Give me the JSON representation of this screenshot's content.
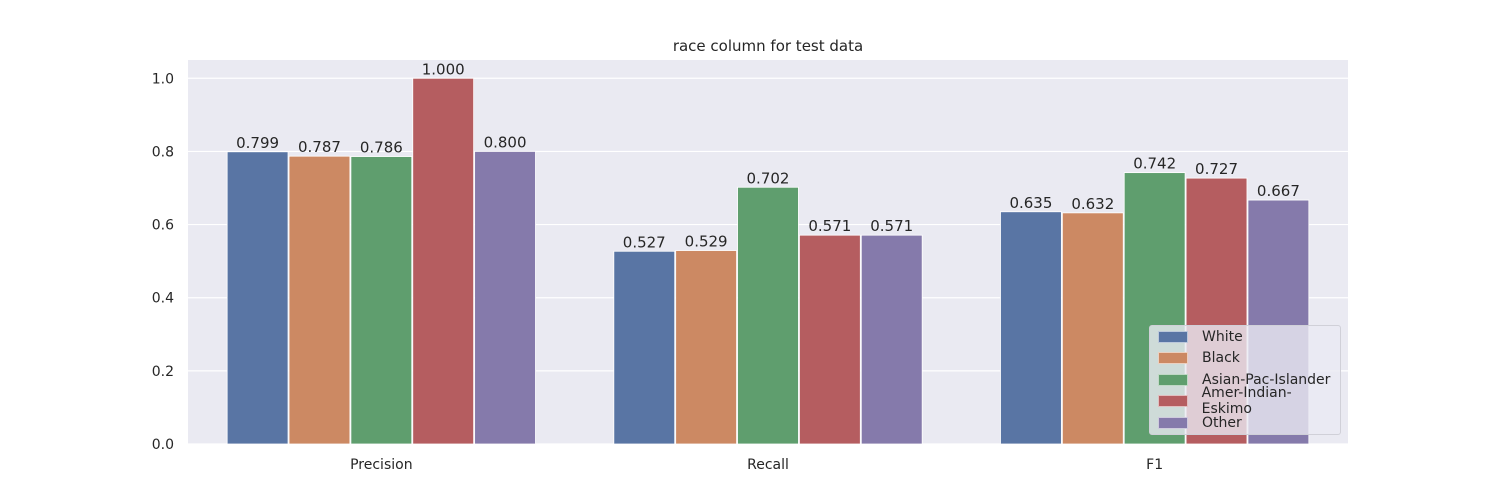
{
  "chart_data": {
    "type": "bar",
    "title": "race column for test data",
    "xlabel": "",
    "ylabel": "",
    "categories": [
      "Precision",
      "Recall",
      "F1"
    ],
    "ylim": [
      0,
      1.05
    ],
    "yticks": [
      "0.0",
      "0.2",
      "0.4",
      "0.6",
      "0.8",
      "1.0"
    ],
    "grid": true,
    "legend_position": "lower-right",
    "series": [
      {
        "name": "White",
        "color": "#5975a4",
        "values": [
          0.799,
          0.527,
          0.635
        ],
        "labels": [
          "0.799",
          "0.527",
          "0.635"
        ]
      },
      {
        "name": "Black",
        "color": "#cc8963",
        "values": [
          0.787,
          0.529,
          0.632
        ],
        "labels": [
          "0.787",
          "0.529",
          "0.632"
        ]
      },
      {
        "name": "Asian-Pac-Islander",
        "color": "#5f9e6e",
        "values": [
          0.786,
          0.702,
          0.742
        ],
        "labels": [
          "0.786",
          "0.702",
          "0.742"
        ]
      },
      {
        "name": "Amer-Indian-Eskimo",
        "color": "#b55d60",
        "values": [
          1.0,
          0.571,
          0.727
        ],
        "labels": [
          "1.000",
          "0.571",
          "0.727"
        ]
      },
      {
        "name": "Other",
        "color": "#857aab",
        "values": [
          0.8,
          0.571,
          0.667
        ],
        "labels": [
          "0.800",
          "0.571",
          "0.667"
        ]
      }
    ]
  }
}
